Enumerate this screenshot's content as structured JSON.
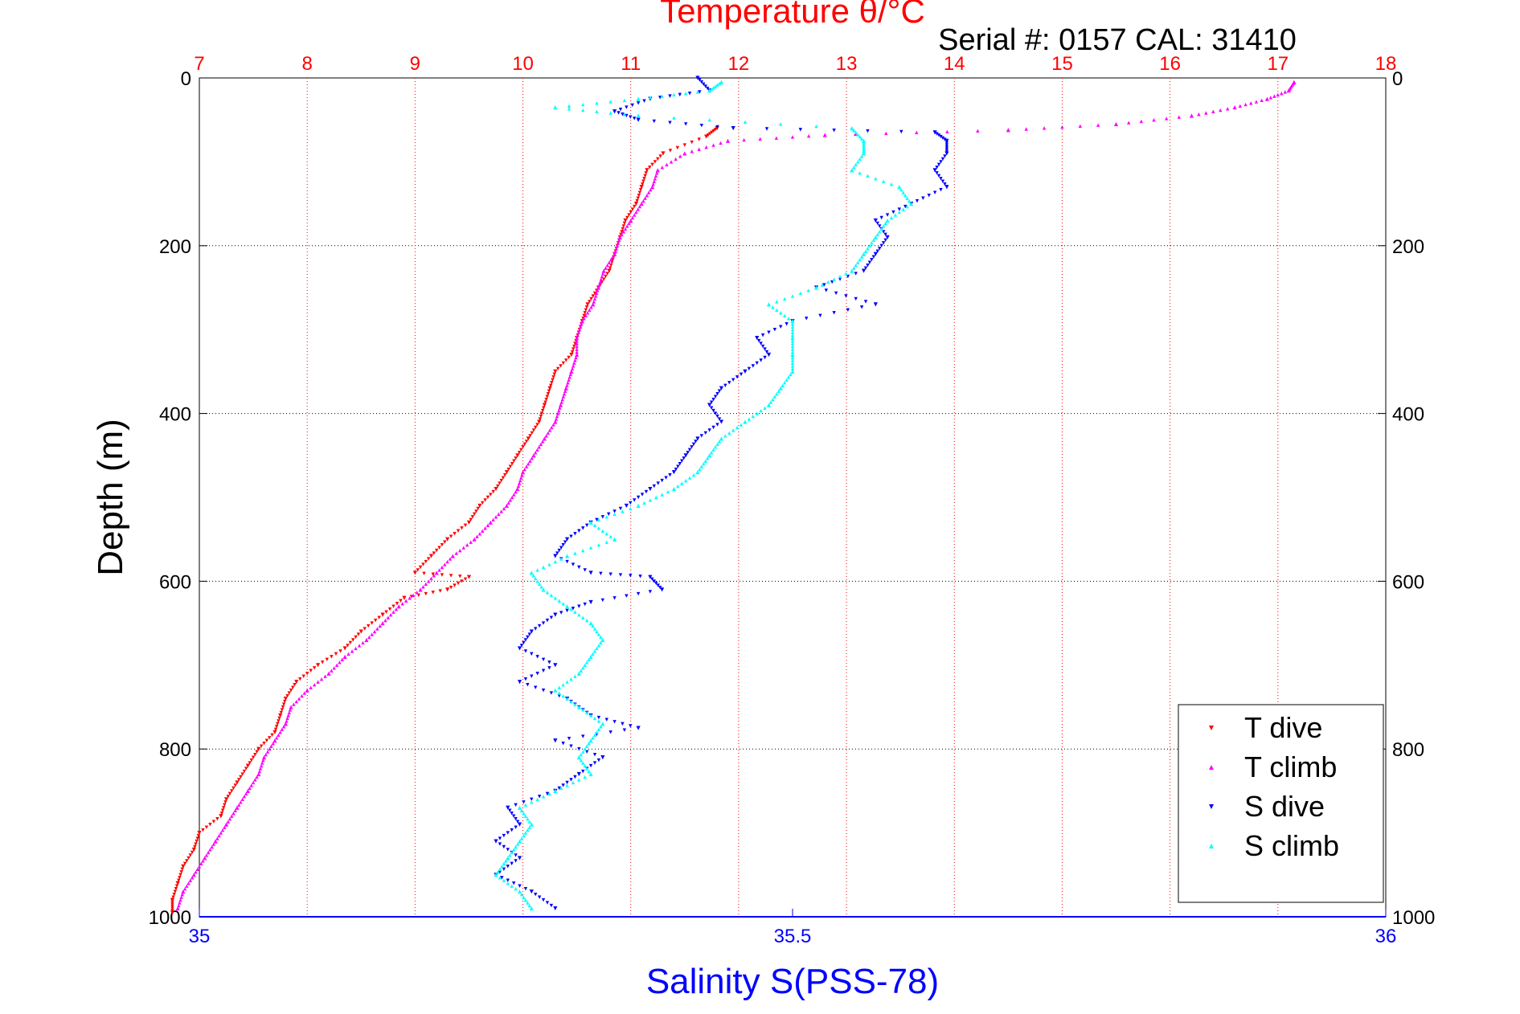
{
  "chart_data": {
    "type": "scatter",
    "title": "Temperature θ/°C",
    "subtitle": "Serial #: 0157  CAL: 31410",
    "ylabel": "Depth (m)",
    "xlabel_bottom": "Salinity S(PSS-78)",
    "xlabel_top": "Temperature θ/°C",
    "ylim": [
      0,
      1000
    ],
    "y_reversed": true,
    "xlim_top": [
      7,
      18
    ],
    "xlim_bottom": [
      35,
      36
    ],
    "y_ticks": [
      "0",
      "200",
      "400",
      "600",
      "800",
      "1000"
    ],
    "x_top_ticks": [
      "7",
      "8",
      "9",
      "10",
      "11",
      "12",
      "13",
      "14",
      "15",
      "16",
      "17",
      "18"
    ],
    "x_bottom_ticks": [
      "35",
      "35.5",
      "36"
    ],
    "grid": true,
    "legend_position": "bottom-right",
    "colors": {
      "t_dive": "#ff0000",
      "t_climb": "#ff00ff",
      "s_dive": "#0000ff",
      "s_climb": "#00ffff",
      "title": "#ff0000",
      "salinity_axis": "#0000ff",
      "temp_grid": "#ff0000"
    },
    "series": [
      {
        "name": "T dive",
        "axis": "temperature",
        "color": "#ff0000",
        "marker": "triangle-down",
        "points": [
          [
            11.8,
            60
          ],
          [
            11.7,
            70
          ],
          [
            11.3,
            90
          ],
          [
            11.15,
            110
          ],
          [
            11.1,
            130
          ],
          [
            11.05,
            150
          ],
          [
            10.95,
            170
          ],
          [
            10.9,
            190
          ],
          [
            10.85,
            210
          ],
          [
            10.8,
            230
          ],
          [
            10.7,
            250
          ],
          [
            10.6,
            270
          ],
          [
            10.55,
            290
          ],
          [
            10.5,
            310
          ],
          [
            10.45,
            330
          ],
          [
            10.3,
            350
          ],
          [
            10.25,
            370
          ],
          [
            10.2,
            390
          ],
          [
            10.15,
            410
          ],
          [
            10.05,
            430
          ],
          [
            9.95,
            450
          ],
          [
            9.85,
            470
          ],
          [
            9.75,
            490
          ],
          [
            9.6,
            510
          ],
          [
            9.5,
            530
          ],
          [
            9.3,
            550
          ],
          [
            9.15,
            570
          ],
          [
            9.0,
            590
          ],
          [
            9.5,
            595
          ],
          [
            9.3,
            610
          ],
          [
            8.9,
            620
          ],
          [
            8.7,
            640
          ],
          [
            8.5,
            660
          ],
          [
            8.35,
            680
          ],
          [
            8.1,
            700
          ],
          [
            7.9,
            720
          ],
          [
            7.8,
            740
          ],
          [
            7.75,
            760
          ],
          [
            7.7,
            780
          ],
          [
            7.55,
            800
          ],
          [
            7.45,
            820
          ],
          [
            7.35,
            840
          ],
          [
            7.25,
            860
          ],
          [
            7.2,
            880
          ],
          [
            7.0,
            900
          ],
          [
            6.95,
            920
          ],
          [
            6.85,
            940
          ],
          [
            6.8,
            960
          ],
          [
            6.75,
            980
          ],
          [
            6.75,
            995
          ]
        ]
      },
      {
        "name": "T climb",
        "axis": "temperature",
        "color": "#ff00ff",
        "marker": "triangle-up",
        "points": [
          [
            17.15,
            5
          ],
          [
            17.1,
            15
          ],
          [
            16.9,
            25
          ],
          [
            16.6,
            35
          ],
          [
            16.2,
            45
          ],
          [
            15.5,
            55
          ],
          [
            14.5,
            62
          ],
          [
            12.8,
            68
          ],
          [
            11.9,
            75
          ],
          [
            11.5,
            90
          ],
          [
            11.25,
            110
          ],
          [
            11.2,
            130
          ],
          [
            11.1,
            150
          ],
          [
            11.0,
            170
          ],
          [
            10.9,
            190
          ],
          [
            10.85,
            210
          ],
          [
            10.75,
            230
          ],
          [
            10.7,
            250
          ],
          [
            10.65,
            270
          ],
          [
            10.55,
            290
          ],
          [
            10.5,
            310
          ],
          [
            10.5,
            330
          ],
          [
            10.45,
            350
          ],
          [
            10.4,
            370
          ],
          [
            10.35,
            390
          ],
          [
            10.3,
            410
          ],
          [
            10.2,
            430
          ],
          [
            10.1,
            450
          ],
          [
            10.0,
            470
          ],
          [
            9.95,
            490
          ],
          [
            9.85,
            510
          ],
          [
            9.7,
            530
          ],
          [
            9.55,
            550
          ],
          [
            9.35,
            570
          ],
          [
            9.2,
            590
          ],
          [
            9.05,
            610
          ],
          [
            8.85,
            630
          ],
          [
            8.7,
            650
          ],
          [
            8.55,
            670
          ],
          [
            8.35,
            690
          ],
          [
            8.2,
            710
          ],
          [
            8.0,
            730
          ],
          [
            7.85,
            750
          ],
          [
            7.8,
            770
          ],
          [
            7.7,
            790
          ],
          [
            7.6,
            810
          ],
          [
            7.55,
            830
          ],
          [
            7.45,
            850
          ],
          [
            7.35,
            870
          ],
          [
            7.25,
            890
          ],
          [
            7.15,
            910
          ],
          [
            7.05,
            930
          ],
          [
            6.95,
            950
          ],
          [
            6.85,
            970
          ],
          [
            6.8,
            990
          ]
        ]
      },
      {
        "name": "S dive",
        "axis": "salinity",
        "color": "#0000ff",
        "marker": "triangle-down",
        "points": [
          [
            35.42,
            0
          ],
          [
            35.43,
            15
          ],
          [
            35.38,
            25
          ],
          [
            35.35,
            40
          ],
          [
            35.37,
            50
          ],
          [
            35.45,
            60
          ],
          [
            35.62,
            65
          ],
          [
            35.63,
            75
          ],
          [
            35.63,
            90
          ],
          [
            35.62,
            110
          ],
          [
            35.63,
            130
          ],
          [
            35.6,
            150
          ],
          [
            35.57,
            170
          ],
          [
            35.58,
            190
          ],
          [
            35.57,
            210
          ],
          [
            35.56,
            230
          ],
          [
            35.52,
            250
          ],
          [
            35.57,
            270
          ],
          [
            35.5,
            290
          ],
          [
            35.47,
            310
          ],
          [
            35.48,
            330
          ],
          [
            35.46,
            350
          ],
          [
            35.44,
            370
          ],
          [
            35.43,
            390
          ],
          [
            35.44,
            410
          ],
          [
            35.42,
            430
          ],
          [
            35.41,
            450
          ],
          [
            35.4,
            470
          ],
          [
            35.38,
            490
          ],
          [
            35.36,
            510
          ],
          [
            35.33,
            530
          ],
          [
            35.31,
            550
          ],
          [
            35.3,
            570
          ],
          [
            35.33,
            590
          ],
          [
            35.38,
            595
          ],
          [
            35.39,
            610
          ],
          [
            35.33,
            625
          ],
          [
            35.3,
            640
          ],
          [
            35.28,
            660
          ],
          [
            35.27,
            680
          ],
          [
            35.3,
            700
          ],
          [
            35.27,
            720
          ],
          [
            35.31,
            740
          ],
          [
            35.33,
            760
          ],
          [
            35.37,
            775
          ],
          [
            35.3,
            790
          ],
          [
            35.34,
            810
          ],
          [
            35.32,
            830
          ],
          [
            35.3,
            850
          ],
          [
            35.26,
            870
          ],
          [
            35.27,
            890
          ],
          [
            35.25,
            910
          ],
          [
            35.27,
            930
          ],
          [
            35.25,
            950
          ],
          [
            35.28,
            970
          ],
          [
            35.3,
            990
          ]
        ]
      },
      {
        "name": "S climb",
        "axis": "salinity",
        "color": "#00ffff",
        "marker": "triangle-up",
        "points": [
          [
            35.44,
            5
          ],
          [
            35.43,
            15
          ],
          [
            35.37,
            25
          ],
          [
            35.3,
            35
          ],
          [
            35.37,
            45
          ],
          [
            35.55,
            60
          ],
          [
            35.56,
            75
          ],
          [
            35.56,
            90
          ],
          [
            35.55,
            110
          ],
          [
            35.59,
            130
          ],
          [
            35.6,
            150
          ],
          [
            35.58,
            170
          ],
          [
            35.57,
            190
          ],
          [
            35.56,
            210
          ],
          [
            35.55,
            230
          ],
          [
            35.52,
            250
          ],
          [
            35.48,
            270
          ],
          [
            35.5,
            290
          ],
          [
            35.5,
            310
          ],
          [
            35.5,
            330
          ],
          [
            35.5,
            350
          ],
          [
            35.49,
            370
          ],
          [
            35.48,
            390
          ],
          [
            35.46,
            410
          ],
          [
            35.44,
            430
          ],
          [
            35.43,
            450
          ],
          [
            35.42,
            470
          ],
          [
            35.4,
            490
          ],
          [
            35.37,
            510
          ],
          [
            35.33,
            530
          ],
          [
            35.35,
            550
          ],
          [
            35.31,
            570
          ],
          [
            35.28,
            590
          ],
          [
            35.29,
            610
          ],
          [
            35.31,
            630
          ],
          [
            35.33,
            650
          ],
          [
            35.34,
            670
          ],
          [
            35.33,
            690
          ],
          [
            35.32,
            710
          ],
          [
            35.3,
            730
          ],
          [
            35.32,
            750
          ],
          [
            35.34,
            770
          ],
          [
            35.33,
            790
          ],
          [
            35.32,
            810
          ],
          [
            35.33,
            830
          ],
          [
            35.3,
            850
          ],
          [
            35.27,
            870
          ],
          [
            35.28,
            890
          ],
          [
            35.27,
            910
          ],
          [
            35.26,
            930
          ],
          [
            35.25,
            950
          ],
          [
            35.27,
            970
          ],
          [
            35.28,
            990
          ]
        ]
      }
    ]
  }
}
